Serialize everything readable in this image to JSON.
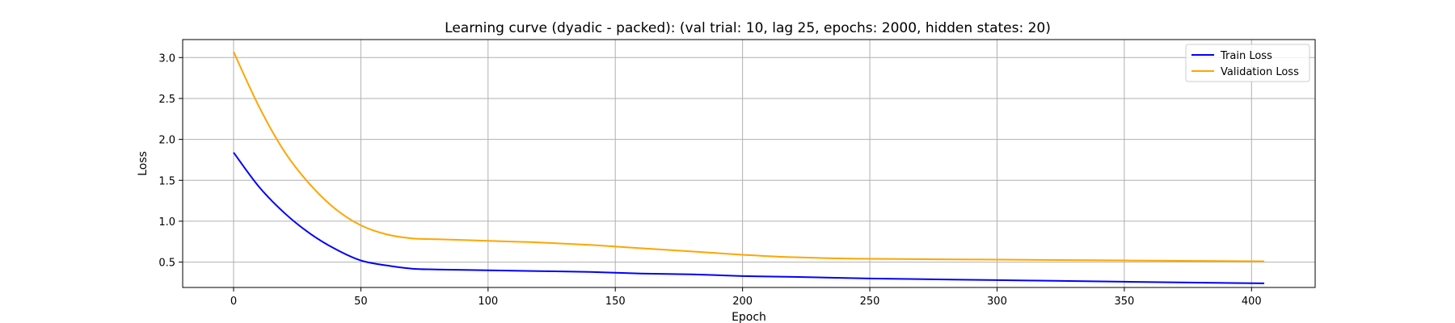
{
  "chart_data": {
    "type": "line",
    "title": "Learning curve (dyadic - packed): (val trial: 10, lag 25, epochs: 2000, hidden states: 20)",
    "xlabel": "Epoch",
    "ylabel": "Loss",
    "xlim": [
      -20,
      425
    ],
    "ylim": [
      0.19,
      3.22
    ],
    "xticks": [
      0,
      50,
      100,
      150,
      200,
      250,
      300,
      350,
      400
    ],
    "yticks": [
      0.5,
      1.0,
      1.5,
      2.0,
      2.5,
      3.0
    ],
    "xtick_labels": [
      "0",
      "50",
      "100",
      "150",
      "200",
      "250",
      "300",
      "350",
      "400"
    ],
    "ytick_labels": [
      "0.5",
      "1.0",
      "1.5",
      "2.0",
      "2.5",
      "3.0"
    ],
    "grid": true,
    "legend_position": "top-right",
    "x": [
      0,
      10,
      20,
      30,
      40,
      50,
      60,
      70,
      80,
      100,
      120,
      140,
      160,
      180,
      200,
      220,
      250,
      300,
      350,
      405
    ],
    "series": [
      {
        "name": "Train Loss",
        "color": "#0000ff",
        "values": [
          1.84,
          1.42,
          1.1,
          0.85,
          0.66,
          0.52,
          0.46,
          0.42,
          0.41,
          0.4,
          0.39,
          0.38,
          0.36,
          0.35,
          0.33,
          0.32,
          0.3,
          0.28,
          0.26,
          0.24
        ]
      },
      {
        "name": "Validation Loss",
        "color": "#ffa500",
        "values": [
          3.07,
          2.4,
          1.85,
          1.45,
          1.15,
          0.95,
          0.84,
          0.79,
          0.78,
          0.76,
          0.74,
          0.71,
          0.67,
          0.63,
          0.59,
          0.56,
          0.54,
          0.53,
          0.52,
          0.51
        ]
      }
    ]
  }
}
